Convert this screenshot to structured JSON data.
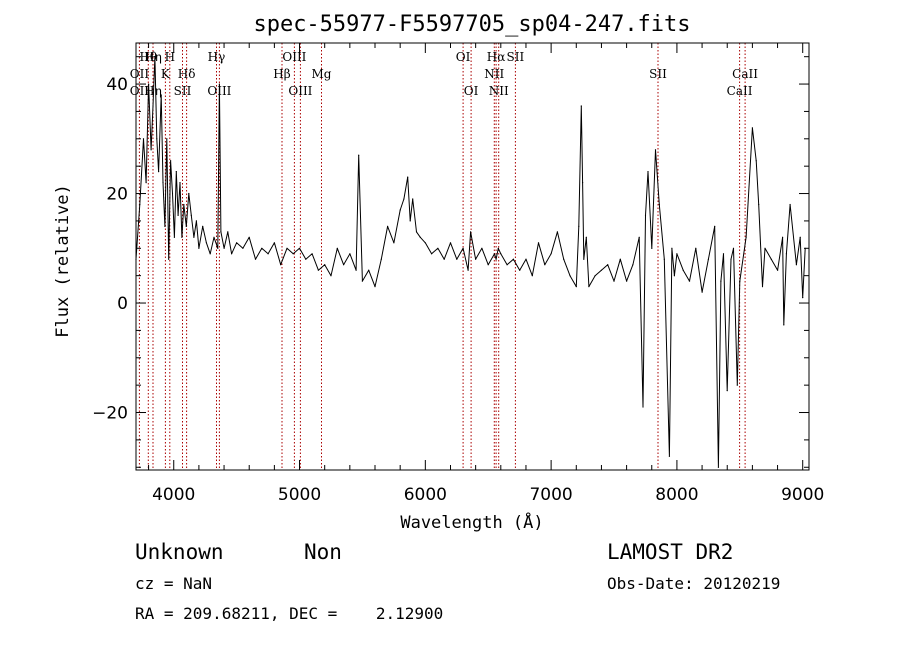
{
  "chart_data": {
    "type": "line",
    "title": "spec-55977-F5597705_sp04-247.fits",
    "xlabel": "Wavelength (Å)",
    "ylabel": "Flux (relative)",
    "xlim": [
      3700,
      9050
    ],
    "ylim": [
      -30.5,
      47.5
    ],
    "x_ticks": [
      4000,
      5000,
      6000,
      7000,
      8000,
      9000
    ],
    "x_tick_labels": [
      "4000",
      "5000",
      "6000",
      "7000",
      "8000",
      "9000"
    ],
    "y_ticks": [
      -20,
      0,
      20,
      40
    ],
    "y_tick_labels": [
      "−20",
      "0",
      "20",
      "40"
    ],
    "grid": false,
    "series": [
      {
        "name": "",
        "color": "#000000",
        "x": [
          3700,
          3730,
          3760,
          3780,
          3800,
          3820,
          3835,
          3850,
          3865,
          3880,
          3900,
          3915,
          3930,
          3945,
          3960,
          3975,
          3990,
          4005,
          4020,
          4035,
          4050,
          4065,
          4080,
          4100,
          4120,
          4140,
          4160,
          4180,
          4200,
          4230,
          4260,
          4290,
          4320,
          4350,
          4363,
          4375,
          4400,
          4430,
          4460,
          4500,
          4550,
          4600,
          4650,
          4700,
          4750,
          4800,
          4850,
          4900,
          4950,
          5000,
          5050,
          5100,
          5150,
          5200,
          5250,
          5300,
          5350,
          5400,
          5450,
          5470,
          5500,
          5550,
          5600,
          5650,
          5700,
          5750,
          5800,
          5830,
          5860,
          5880,
          5900,
          5930,
          5960,
          6000,
          6050,
          6100,
          6150,
          6200,
          6250,
          6300,
          6340,
          6360,
          6400,
          6450,
          6500,
          6550,
          6563,
          6580,
          6600,
          6650,
          6700,
          6750,
          6800,
          6850,
          6900,
          6950,
          7000,
          7050,
          7100,
          7150,
          7200,
          7220,
          7240,
          7250,
          7260,
          7280,
          7300,
          7350,
          7400,
          7450,
          7500,
          7550,
          7600,
          7650,
          7700,
          7730,
          7750,
          7770,
          7800,
          7830,
          7860,
          7900,
          7940,
          7960,
          7980,
          8000,
          8050,
          8100,
          8150,
          8200,
          8250,
          8300,
          8330,
          8350,
          8370,
          8400,
          8430,
          8450,
          8480,
          8500,
          8550,
          8600,
          8630,
          8650,
          8680,
          8700,
          8750,
          8800,
          8840,
          8850,
          8870,
          8900,
          8950,
          8980,
          9000,
          9020
        ],
        "y": [
          8,
          18,
          30,
          22,
          40,
          28,
          36,
          45,
          30,
          24,
          38,
          22,
          14,
          30,
          8,
          26,
          20,
          12,
          24,
          16,
          22,
          12,
          18,
          14,
          20,
          16,
          12,
          15,
          10,
          14,
          11,
          9,
          12,
          10,
          40,
          13,
          10,
          13,
          9,
          11,
          10,
          12,
          8,
          10,
          9,
          11,
          7,
          10,
          9,
          10,
          8,
          9,
          6,
          7,
          5,
          10,
          7,
          9,
          6,
          27,
          4,
          6,
          3,
          8,
          14,
          11,
          17,
          19,
          23,
          15,
          19,
          13,
          12,
          11,
          9,
          10,
          8,
          11,
          8,
          10,
          6,
          13,
          8,
          10,
          7,
          9,
          8,
          10,
          9,
          7,
          8,
          6,
          8,
          5,
          11,
          7,
          9,
          13,
          8,
          5,
          3,
          14,
          36,
          22,
          8,
          12,
          3,
          5,
          6,
          7,
          4,
          8,
          4,
          7,
          12,
          -19,
          16,
          24,
          10,
          28,
          18,
          8,
          -28,
          10,
          5,
          9,
          6,
          4,
          10,
          2,
          8,
          14,
          -30,
          4,
          9,
          -16,
          8,
          10,
          -15,
          4,
          12,
          32,
          26,
          18,
          3,
          10,
          8,
          6,
          12,
          -4,
          9,
          18,
          7,
          12,
          1,
          10
        ]
      }
    ],
    "lines": [
      {
        "name": "OII",
        "x": 3727
      },
      {
        "name": "Hθ",
        "x": 3798
      },
      {
        "name": "Hη",
        "x": 3835
      },
      {
        "name": "K",
        "x": 3934
      },
      {
        "name": "H",
        "x": 3969
      },
      {
        "name": "SII",
        "x": 4070
      },
      {
        "name": "Hδ",
        "x": 4102
      },
      {
        "name": "Hγ",
        "x": 4340
      },
      {
        "name": "OIII",
        "x": 4363
      },
      {
        "name": "Hβ",
        "x": 4861
      },
      {
        "name": "OIII",
        "x": 4959
      },
      {
        "name": "OIII",
        "x": 5007
      },
      {
        "name": "Mg",
        "x": 5175
      },
      {
        "name": "OI",
        "x": 6300
      },
      {
        "name": "OI",
        "x": 6364
      },
      {
        "name": "NII",
        "x": 6548
      },
      {
        "name": "Hα",
        "x": 6563
      },
      {
        "name": "NII",
        "x": 6583
      },
      {
        "name": "SII",
        "x": 6716
      },
      {
        "name": "SII",
        "x": 7850
      },
      {
        "name": "CaII",
        "x": 8498
      },
      {
        "name": "CaII",
        "x": 8542
      }
    ]
  },
  "line_labels": [
    {
      "name": "OII",
      "x": 3727,
      "row": 2
    },
    {
      "name": "OII",
      "x": 3727,
      "row": 3
    },
    {
      "name": "Hθ",
      "x": 3798,
      "row": 1
    },
    {
      "name": "Hη",
      "x": 3835,
      "row": 1
    },
    {
      "name": "Hη",
      "x": 3835,
      "row": 3
    },
    {
      "name": "K",
      "x": 3934,
      "row": 2
    },
    {
      "name": "H",
      "x": 3969,
      "row": 1
    },
    {
      "name": "SII",
      "x": 4070,
      "row": 3
    },
    {
      "name": "Hδ",
      "x": 4102,
      "row": 2
    },
    {
      "name": "Hγ",
      "x": 4340,
      "row": 1
    },
    {
      "name": "OIII",
      "x": 4363,
      "row": 3
    },
    {
      "name": "Hβ",
      "x": 4861,
      "row": 2
    },
    {
      "name": "OIII",
      "x": 4959,
      "row": 1
    },
    {
      "name": "OIII",
      "x": 5007,
      "row": 3
    },
    {
      "name": "Mg",
      "x": 5175,
      "row": 2
    },
    {
      "name": "OI",
      "x": 6300,
      "row": 1
    },
    {
      "name": "OI",
      "x": 6364,
      "row": 3
    },
    {
      "name": "NII",
      "x": 6548,
      "row": 2
    },
    {
      "name": "Hα",
      "x": 6563,
      "row": 1
    },
    {
      "name": "SII",
      "x": 6716,
      "row": 1
    },
    {
      "name": "NII",
      "x": 6583,
      "row": 3
    },
    {
      "name": "SII",
      "x": 7850,
      "row": 2
    },
    {
      "name": "CaII",
      "x": 8498,
      "row": 3
    },
    {
      "name": "CaII",
      "x": 8542,
      "row": 2
    }
  ],
  "info": {
    "class": "Unknown",
    "subclass": "Non",
    "survey": "LAMOST DR2",
    "cz": "cz = NaN",
    "obs_date": "Obs-Date: 20120219",
    "coords": "RA = 209.68211, DEC =    2.12900"
  },
  "colors": {
    "spectrum": "#000000",
    "line_marker": "#aa0000",
    "axes": "#000000",
    "background": "#ffffff"
  }
}
